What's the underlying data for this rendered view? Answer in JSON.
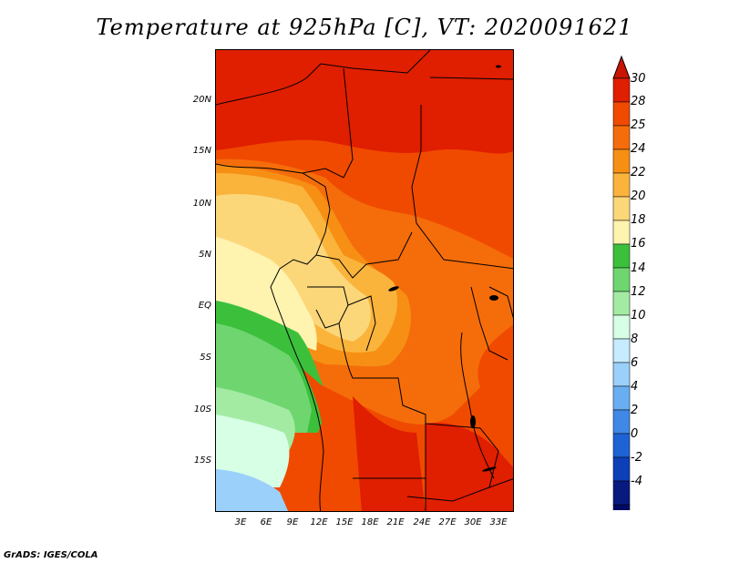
{
  "title": "Temperature at 925hPa [C], VT: 2020091621",
  "credit": "GrADS: IGES/COLA",
  "map": {
    "y_ticks": [
      "20N",
      "15N",
      "10N",
      "5N",
      "EQ",
      "5S",
      "10S",
      "15S"
    ],
    "x_ticks": [
      "3E",
      "6E",
      "9E",
      "12E",
      "15E",
      "18E",
      "21E",
      "24E",
      "27E",
      "30E",
      "33E"
    ]
  },
  "colorbar": {
    "labels": [
      "30",
      "28",
      "25",
      "24",
      "22",
      "20",
      "18",
      "16",
      "14",
      "12",
      "10",
      "8",
      "6",
      "4",
      "2",
      "0",
      "-2",
      "-4"
    ],
    "colors": [
      "#e01e00",
      "#f04a00",
      "#f56d0a",
      "#f78f14",
      "#fab43c",
      "#fcd77a",
      "#fff3b0",
      "#3cc03c",
      "#6fd66f",
      "#a3eba3",
      "#d6ffe6",
      "#c7ebff",
      "#9ad0fa",
      "#6aaef2",
      "#4088e6",
      "#1d63d6",
      "#0c3fb8",
      "#081a80",
      "#000a64"
    ],
    "bottom_arrow_color": "#d8d8ff",
    "top_arrow_color": "#c81400"
  }
}
